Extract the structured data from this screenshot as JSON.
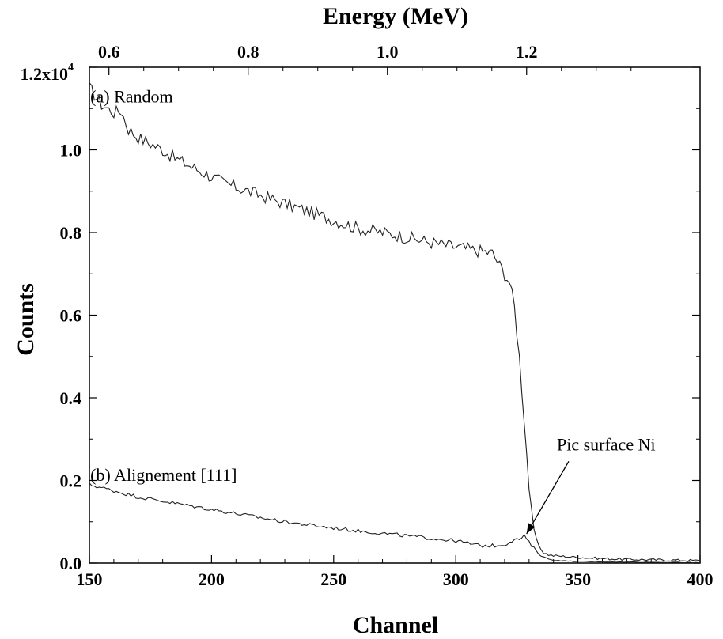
{
  "chart_data": {
    "type": "line",
    "title": "",
    "xlabel": "Channel",
    "ylabel": "Counts",
    "x2label": "Energy (MeV)",
    "xlim": [
      150,
      400
    ],
    "ylim": [
      0,
      12000
    ],
    "x_ticks": [
      150,
      200,
      250,
      300,
      350,
      400
    ],
    "x_tick_labels": [
      "150",
      "200",
      "250",
      "300",
      "350",
      "400"
    ],
    "y_ticks": [
      0,
      2000,
      4000,
      6000,
      8000,
      10000,
      12000
    ],
    "y_tick_labels": [
      "0.0",
      "0.2",
      "0.4",
      "0.6",
      "0.8",
      "1.0",
      "1.2x10"
    ],
    "y_top_exponent": "4",
    "energy_ticks": [
      {
        "label": "0.6",
        "channel": 158
      },
      {
        "label": "0.8",
        "channel": 215
      },
      {
        "label": "1.0",
        "channel": 272
      },
      {
        "label": "1.2",
        "channel": 329
      }
    ],
    "grid": false,
    "series": [
      {
        "name": "(a) Random",
        "x": [
          150,
          155,
          160,
          163,
          166,
          170,
          175,
          180,
          185,
          190,
          195,
          200,
          205,
          210,
          215,
          220,
          225,
          230,
          235,
          240,
          245,
          250,
          255,
          260,
          265,
          270,
          275,
          280,
          285,
          290,
          295,
          300,
          305,
          310,
          315,
          318,
          320,
          322,
          324,
          326,
          328,
          330,
          332,
          334,
          336,
          338,
          340,
          345,
          350,
          360,
          370,
          380,
          390,
          400
        ],
        "y": [
          11500,
          11100,
          10900,
          10950,
          10500,
          10300,
          10150,
          10000,
          9800,
          9650,
          9500,
          9350,
          9200,
          9100,
          9000,
          8900,
          8800,
          8700,
          8600,
          8500,
          8400,
          8300,
          8200,
          8100,
          8050,
          8000,
          7950,
          7880,
          7820,
          7760,
          7700,
          7650,
          7600,
          7550,
          7500,
          7200,
          7000,
          6800,
          6200,
          5000,
          3500,
          1800,
          800,
          400,
          250,
          200,
          180,
          160,
          140,
          110,
          90,
          80,
          70,
          60
        ]
      },
      {
        "name": "(b) Alignement [111]",
        "x": [
          150,
          160,
          170,
          180,
          190,
          200,
          210,
          220,
          230,
          240,
          250,
          260,
          270,
          280,
          290,
          300,
          310,
          315,
          320,
          323,
          326,
          328,
          330,
          332,
          334,
          336,
          338,
          340,
          345,
          350,
          360,
          370,
          380,
          390,
          400
        ],
        "y": [
          1900,
          1750,
          1600,
          1500,
          1400,
          1300,
          1200,
          1100,
          1000,
          920,
          850,
          780,
          720,
          660,
          600,
          540,
          420,
          420,
          450,
          550,
          580,
          650,
          500,
          350,
          250,
          150,
          100,
          70,
          50,
          40,
          30,
          25,
          20,
          15,
          10
        ]
      }
    ],
    "annotations": [
      {
        "text": "(a) Random",
        "x": 152,
        "y": 11000
      },
      {
        "text": "(b) Alignement [111]",
        "x": 152,
        "y": 1800
      },
      {
        "text": "Pic surface Ni",
        "x": 343,
        "y": 2500,
        "arrow_to": [
          328,
          650
        ]
      }
    ]
  }
}
